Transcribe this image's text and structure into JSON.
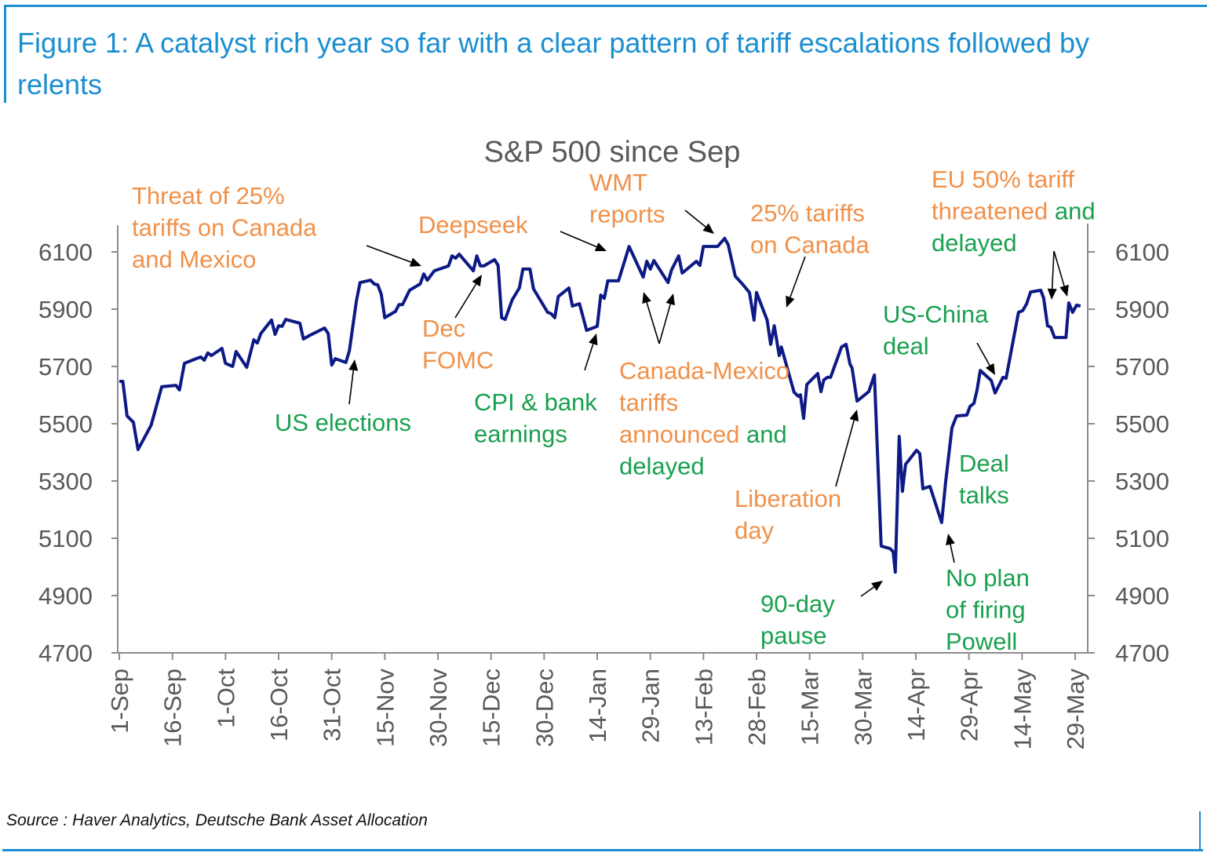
{
  "figure_title": "Figure 1: A catalyst rich year so far with a clear pattern of tariff escalations followed by relents",
  "source": "Source : Haver Analytics, Deutsche Bank Asset Allocation",
  "colors": {
    "frame": "#1b8fd0",
    "line": "#0d1a85",
    "escalation": "#f0914a",
    "relent": "#1aa04f",
    "axis": "#8c8c8c",
    "text": "#595959"
  },
  "chart_data": {
    "type": "line",
    "title": "S&P 500 since Sep",
    "xlabel": "",
    "ylabel": "",
    "x_unit": "days since 1-Sep",
    "xlim": [
      0,
      270
    ],
    "ylim": [
      4700,
      6100
    ],
    "y_ticks": [
      4700,
      4900,
      5100,
      5300,
      5500,
      5700,
      5900,
      6100
    ],
    "y_axes": [
      "left",
      "right"
    ],
    "x_ticks": [
      {
        "label": "1-Sep",
        "day": 0
      },
      {
        "label": "16-Sep",
        "day": 15
      },
      {
        "label": "1-Oct",
        "day": 30
      },
      {
        "label": "16-Oct",
        "day": 45
      },
      {
        "label": "31-Oct",
        "day": 60
      },
      {
        "label": "15-Nov",
        "day": 75
      },
      {
        "label": "30-Nov",
        "day": 90
      },
      {
        "label": "15-Dec",
        "day": 105
      },
      {
        "label": "30-Dec",
        "day": 120
      },
      {
        "label": "14-Jan",
        "day": 135
      },
      {
        "label": "29-Jan",
        "day": 150
      },
      {
        "label": "13-Feb",
        "day": 165
      },
      {
        "label": "28-Feb",
        "day": 180
      },
      {
        "label": "15-Mar",
        "day": 195
      },
      {
        "label": "30-Mar",
        "day": 210
      },
      {
        "label": "14-Apr",
        "day": 225
      },
      {
        "label": "29-Apr",
        "day": 240
      },
      {
        "label": "14-May",
        "day": 255
      },
      {
        "label": "29-May",
        "day": 270
      }
    ],
    "grid": false,
    "series": [
      {
        "name": "S&P 500",
        "points": [
          [
            0,
            5648
          ],
          [
            1,
            5648
          ],
          [
            2.2,
            5527
          ],
          [
            4,
            5505
          ],
          [
            5.3,
            5410
          ],
          [
            9,
            5495
          ],
          [
            12,
            5629
          ],
          [
            16,
            5634
          ],
          [
            17,
            5618
          ],
          [
            18.4,
            5711
          ],
          [
            21.7,
            5727
          ],
          [
            23,
            5733
          ],
          [
            24,
            5722
          ],
          [
            25,
            5747
          ],
          [
            26,
            5738
          ],
          [
            29,
            5763
          ],
          [
            30,
            5711
          ],
          [
            32,
            5700
          ],
          [
            33,
            5752
          ],
          [
            36,
            5697
          ],
          [
            38,
            5793
          ],
          [
            39,
            5782
          ],
          [
            40,
            5815
          ],
          [
            43,
            5862
          ],
          [
            44,
            5812
          ],
          [
            45,
            5842
          ],
          [
            46,
            5840
          ],
          [
            47,
            5864
          ],
          [
            51,
            5851
          ],
          [
            52,
            5796
          ],
          [
            54,
            5810
          ],
          [
            58,
            5834
          ],
          [
            59,
            5815
          ],
          [
            60,
            5705
          ],
          [
            61,
            5727
          ],
          [
            64,
            5714
          ],
          [
            65,
            5755
          ],
          [
            67,
            5930
          ],
          [
            68,
            5993
          ],
          [
            71,
            6001
          ],
          [
            72,
            5988
          ],
          [
            73,
            5985
          ],
          [
            74,
            5952
          ],
          [
            75,
            5870
          ],
          [
            78,
            5892
          ],
          [
            79,
            5916
          ],
          [
            80,
            5916
          ],
          [
            82,
            5966
          ],
          [
            85,
            5988
          ],
          [
            86,
            6023
          ],
          [
            87,
            6001
          ],
          [
            89,
            6034
          ],
          [
            93,
            6051
          ],
          [
            94,
            6086
          ],
          [
            95,
            6078
          ],
          [
            96,
            6092
          ],
          [
            100,
            6034
          ],
          [
            101,
            6086
          ],
          [
            102,
            6051
          ],
          [
            103,
            6051
          ],
          [
            106,
            6073
          ],
          [
            107,
            6053
          ],
          [
            108,
            5870
          ],
          [
            109,
            5864
          ],
          [
            111,
            5933
          ],
          [
            113,
            5974
          ],
          [
            114,
            6040
          ],
          [
            116,
            6040
          ],
          [
            117,
            5971
          ],
          [
            121,
            5889
          ],
          [
            122,
            5884
          ],
          [
            123,
            5870
          ],
          [
            124,
            5944
          ],
          [
            127,
            5974
          ],
          [
            128,
            5911
          ],
          [
            130,
            5919
          ],
          [
            132,
            5826
          ],
          [
            135,
            5840
          ],
          [
            136,
            5949
          ],
          [
            137,
            5938
          ],
          [
            138,
            5999
          ],
          [
            141,
            5999
          ],
          [
            144,
            6119
          ],
          [
            148,
            6012
          ],
          [
            149,
            6067
          ],
          [
            150,
            6040
          ],
          [
            151,
            6070
          ],
          [
            155,
            5993
          ],
          [
            156,
            6037
          ],
          [
            158,
            6086
          ],
          [
            159,
            6026
          ],
          [
            163,
            6067
          ],
          [
            164,
            6053
          ],
          [
            165,
            6119
          ],
          [
            169,
            6119
          ],
          [
            171,
            6147
          ],
          [
            172,
            6125
          ],
          [
            174,
            6015
          ],
          [
            176,
            5988
          ],
          [
            178,
            5958
          ],
          [
            179.3,
            5862
          ],
          [
            180,
            5958
          ],
          [
            183,
            5862
          ],
          [
            184,
            5777
          ],
          [
            185,
            5842
          ],
          [
            186.4,
            5738
          ],
          [
            187,
            5768
          ],
          [
            190.6,
            5610
          ],
          [
            191.8,
            5596
          ],
          [
            192.4,
            5601
          ],
          [
            193.3,
            5519
          ],
          [
            194.2,
            5637
          ],
          [
            197.3,
            5675
          ],
          [
            198.2,
            5612
          ],
          [
            199,
            5653
          ],
          [
            200,
            5662
          ],
          [
            200.9,
            5662
          ],
          [
            204,
            5768
          ],
          [
            205.3,
            5777
          ],
          [
            206.4,
            5708
          ],
          [
            207,
            5694
          ],
          [
            208.4,
            5579
          ],
          [
            211.7,
            5612
          ],
          [
            213.3,
            5670
          ],
          [
            215.2,
            5073
          ],
          [
            217.7,
            5064
          ],
          [
            218.6,
            5053
          ],
          [
            219.2,
            4982
          ],
          [
            220.3,
            5456
          ],
          [
            221.2,
            5264
          ],
          [
            222.1,
            5358
          ],
          [
            225.2,
            5407
          ],
          [
            226.1,
            5396
          ],
          [
            227,
            5273
          ],
          [
            229,
            5281
          ],
          [
            232.3,
            5155
          ],
          [
            233.4,
            5295
          ],
          [
            235.2,
            5486
          ],
          [
            236.5,
            5527
          ],
          [
            239.4,
            5530
          ],
          [
            240.3,
            5560
          ],
          [
            241.4,
            5571
          ],
          [
            242.3,
            5618
          ],
          [
            243.2,
            5686
          ],
          [
            246.3,
            5651
          ],
          [
            247.4,
            5607
          ],
          [
            249.6,
            5662
          ],
          [
            250.5,
            5659
          ],
          [
            254,
            5889
          ],
          [
            255.2,
            5895
          ],
          [
            256.3,
            5919
          ],
          [
            257.4,
            5960
          ],
          [
            260.3,
            5966
          ],
          [
            261.1,
            5938
          ],
          [
            262.2,
            5842
          ],
          [
            263.1,
            5837
          ],
          [
            264.2,
            5801
          ],
          [
            267.4,
            5801
          ],
          [
            268.2,
            5922
          ],
          [
            269.3,
            5889
          ],
          [
            270.4,
            5914
          ],
          [
            271.5,
            5911
          ]
        ]
      }
    ],
    "annotations": [
      {
        "id": "threat",
        "lines": [
          [
            {
              "t": "Threat of 25%",
              "k": "escalation"
            }
          ],
          [
            {
              "t": "tariffs on Canada",
              "k": "escalation"
            }
          ],
          [
            {
              "t": "and Mexico",
              "k": "escalation"
            }
          ]
        ]
      },
      {
        "id": "deepseek",
        "lines": [
          [
            {
              "t": "Deepseek",
              "k": "escalation"
            }
          ]
        ]
      },
      {
        "id": "wmt",
        "lines": [
          [
            {
              "t": "WMT",
              "k": "escalation"
            }
          ],
          [
            {
              "t": "reports",
              "k": "escalation"
            }
          ]
        ]
      },
      {
        "id": "canada25",
        "lines": [
          [
            {
              "t": "25% tariffs",
              "k": "escalation"
            }
          ],
          [
            {
              "t": "on Canada",
              "k": "escalation"
            }
          ]
        ]
      },
      {
        "id": "eu50",
        "lines": [
          [
            {
              "t": "EU 50% tariff",
              "k": "escalation"
            }
          ],
          [
            {
              "t": "threatened ",
              "k": "escalation"
            },
            {
              "t": "and",
              "k": "relent"
            }
          ],
          [
            {
              "t": "delayed",
              "k": "relent"
            }
          ]
        ]
      },
      {
        "id": "elections",
        "lines": [
          [
            {
              "t": "US elections",
              "k": "relent"
            }
          ]
        ]
      },
      {
        "id": "fomc",
        "lines": [
          [
            {
              "t": "Dec",
              "k": "escalation"
            }
          ],
          [
            {
              "t": "FOMC",
              "k": "escalation"
            }
          ]
        ]
      },
      {
        "id": "cpi",
        "lines": [
          [
            {
              "t": "CPI & bank",
              "k": "relent"
            }
          ],
          [
            {
              "t": "earnings",
              "k": "relent"
            }
          ]
        ]
      },
      {
        "id": "canmex",
        "lines": [
          [
            {
              "t": "Canada-Mexico",
              "k": "escalation"
            }
          ],
          [
            {
              "t": "tariffs",
              "k": "escalation"
            }
          ],
          [
            {
              "t": "announced ",
              "k": "escalation"
            },
            {
              "t": "and",
              "k": "relent"
            }
          ],
          [
            {
              "t": "delayed",
              "k": "relent"
            }
          ]
        ]
      },
      {
        "id": "uschina",
        "lines": [
          [
            {
              "t": "US-China",
              "k": "relent"
            }
          ],
          [
            {
              "t": "deal",
              "k": "relent"
            }
          ]
        ]
      },
      {
        "id": "liberation",
        "lines": [
          [
            {
              "t": "Liberation",
              "k": "escalation"
            }
          ],
          [
            {
              "t": "day",
              "k": "escalation"
            }
          ]
        ]
      },
      {
        "id": "dealtalks",
        "lines": [
          [
            {
              "t": "Deal",
              "k": "relent"
            }
          ],
          [
            {
              "t": "talks",
              "k": "relent"
            }
          ]
        ]
      },
      {
        "id": "pause",
        "lines": [
          [
            {
              "t": "90-day",
              "k": "relent"
            }
          ],
          [
            {
              "t": "pause",
              "k": "relent"
            }
          ]
        ]
      },
      {
        "id": "powell",
        "lines": [
          [
            {
              "t": "No plan",
              "k": "relent"
            }
          ],
          [
            {
              "t": "of firing",
              "k": "relent"
            }
          ],
          [
            {
              "t": "Powell",
              "k": "relent"
            }
          ]
        ]
      }
    ]
  }
}
